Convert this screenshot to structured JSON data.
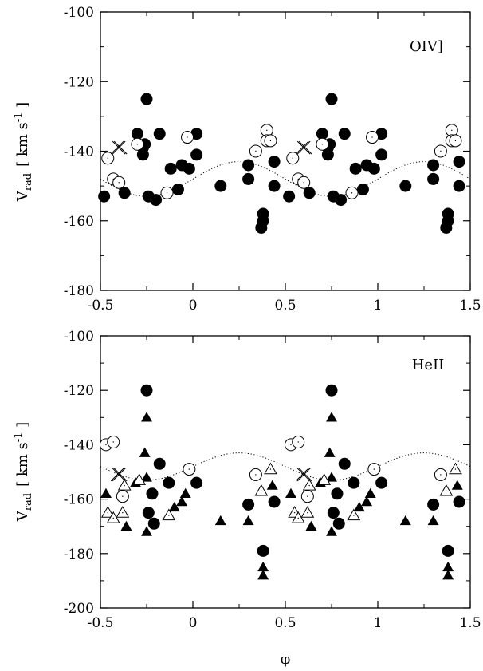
{
  "chart_data": [
    {
      "type": "scatter",
      "annotation": "OIV]",
      "xlabel": "φ",
      "xlim": [
        -0.5,
        1.5
      ],
      "ylim": [
        -180,
        -100
      ],
      "xticks": [
        "-0.5",
        "0",
        "0.5",
        "1",
        "1.5"
      ],
      "yticks": [
        "-100",
        "-120",
        "-140",
        "-160",
        "-180"
      ],
      "ylabel": {
        "main": "V",
        "sub": "rad",
        "unit_open": "[ km s",
        "unit_exp": "-1",
        "unit_close": " ]"
      },
      "model_curve": {
        "style": "dotted",
        "mean": -148,
        "amplitude": 5,
        "phase_of_max": 0.25
      },
      "series": [
        {
          "marker": "filled-circle",
          "points": [
            [
              -0.48,
              -153
            ],
            [
              -0.37,
              -152
            ],
            [
              -0.3,
              -135
            ],
            [
              -0.27,
              -141
            ],
            [
              -0.26,
              -138
            ],
            [
              -0.27,
              -139
            ],
            [
              -0.25,
              -125
            ],
            [
              -0.24,
              -153
            ],
            [
              -0.2,
              -154
            ],
            [
              -0.18,
              -135
            ],
            [
              -0.12,
              -145
            ],
            [
              -0.08,
              -151
            ],
            [
              -0.06,
              -144
            ],
            [
              -0.02,
              -145
            ],
            [
              0.02,
              -135
            ],
            [
              0.02,
              -141
            ],
            [
              0.15,
              -150
            ],
            [
              0.3,
              -144
            ],
            [
              0.3,
              -148
            ],
            [
              0.37,
              -162
            ],
            [
              0.38,
              -158
            ],
            [
              0.38,
              -160
            ],
            [
              0.44,
              -143
            ],
            [
              0.44,
              -150
            ],
            [
              0.52,
              -153
            ],
            [
              0.63,
              -152
            ],
            [
              0.7,
              -135
            ],
            [
              0.73,
              -141
            ],
            [
              0.74,
              -138
            ],
            [
              0.73,
              -139
            ],
            [
              0.75,
              -125
            ],
            [
              0.76,
              -153
            ],
            [
              0.8,
              -154
            ],
            [
              0.82,
              -135
            ],
            [
              0.88,
              -145
            ],
            [
              0.92,
              -151
            ],
            [
              0.94,
              -144
            ],
            [
              0.98,
              -145
            ],
            [
              1.02,
              -135
            ],
            [
              1.02,
              -141
            ],
            [
              1.15,
              -150
            ],
            [
              1.3,
              -144
            ],
            [
              1.3,
              -148
            ],
            [
              1.37,
              -162
            ],
            [
              1.38,
              -158
            ],
            [
              1.38,
              -160
            ],
            [
              1.44,
              -143
            ],
            [
              1.44,
              -150
            ]
          ]
        },
        {
          "marker": "open-circle",
          "points": [
            [
              -0.46,
              -142
            ],
            [
              -0.43,
              -148
            ],
            [
              -0.4,
              -149
            ],
            [
              -0.3,
              -138
            ],
            [
              -0.14,
              -152
            ],
            [
              -0.03,
              -136
            ],
            [
              0.34,
              -140
            ],
            [
              0.4,
              -134
            ],
            [
              0.4,
              -137
            ],
            [
              0.42,
              -137
            ],
            [
              0.54,
              -142
            ],
            [
              0.57,
              -148
            ],
            [
              0.6,
              -149
            ],
            [
              0.7,
              -138
            ],
            [
              0.86,
              -152
            ],
            [
              0.97,
              -136
            ],
            [
              1.34,
              -140
            ],
            [
              1.4,
              -134
            ],
            [
              1.4,
              -137
            ],
            [
              1.42,
              -137
            ]
          ]
        },
        {
          "marker": "cross",
          "points": [
            [
              -0.4,
              -139
            ],
            [
              0.6,
              -139
            ]
          ]
        }
      ]
    },
    {
      "type": "scatter",
      "annotation": "HeII",
      "xlabel": "φ",
      "xlim": [
        -0.5,
        1.5
      ],
      "ylim": [
        -200,
        -100
      ],
      "xticks": [
        "-0.5",
        "0",
        "0.5",
        "1",
        "1.5"
      ],
      "yticks": [
        "-100",
        "-120",
        "-140",
        "-160",
        "-180",
        "-200"
      ],
      "ylabel": {
        "main": "V",
        "sub": "rad",
        "unit_open": "[ km s",
        "unit_exp": "-1",
        "unit_close": " ]"
      },
      "model_curve": {
        "style": "dotted",
        "mean": -148,
        "amplitude": 5,
        "phase_of_max": 0.25
      },
      "series": [
        {
          "marker": "filled-circle",
          "points": [
            [
              -0.25,
              -120
            ],
            [
              -0.24,
              -165
            ],
            [
              -0.22,
              -158
            ],
            [
              -0.21,
              -169
            ],
            [
              -0.18,
              -147
            ],
            [
              -0.13,
              -154
            ],
            [
              0.02,
              -154
            ],
            [
              0.3,
              -162
            ],
            [
              0.38,
              -179
            ],
            [
              0.44,
              -161
            ],
            [
              0.75,
              -120
            ],
            [
              0.76,
              -165
            ],
            [
              0.78,
              -158
            ],
            [
              0.79,
              -169
            ],
            [
              0.82,
              -147
            ],
            [
              0.87,
              -154
            ],
            [
              1.02,
              -154
            ],
            [
              1.3,
              -162
            ],
            [
              1.38,
              -179
            ],
            [
              1.44,
              -161
            ]
          ]
        },
        {
          "marker": "filled-triangle",
          "points": [
            [
              -0.47,
              -158
            ],
            [
              -0.36,
              -170
            ],
            [
              -0.31,
              -154
            ],
            [
              -0.26,
              -143
            ],
            [
              -0.25,
              -130
            ],
            [
              -0.25,
              -152
            ],
            [
              -0.25,
              -172
            ],
            [
              -0.1,
              -163
            ],
            [
              -0.06,
              -161
            ],
            [
              -0.04,
              -158
            ],
            [
              0.15,
              -168
            ],
            [
              0.3,
              -168
            ],
            [
              0.38,
              -188
            ],
            [
              0.38,
              -185
            ],
            [
              0.43,
              -155
            ],
            [
              0.53,
              -158
            ],
            [
              0.64,
              -170
            ],
            [
              0.69,
              -154
            ],
            [
              0.74,
              -143
            ],
            [
              0.75,
              -130
            ],
            [
              0.75,
              -152
            ],
            [
              0.75,
              -172
            ],
            [
              0.9,
              -163
            ],
            [
              0.94,
              -161
            ],
            [
              0.96,
              -158
            ],
            [
              1.15,
              -168
            ],
            [
              1.3,
              -168
            ],
            [
              1.38,
              -188
            ],
            [
              1.38,
              -185
            ],
            [
              1.43,
              -155
            ]
          ]
        },
        {
          "marker": "open-circle",
          "points": [
            [
              -0.47,
              -140
            ],
            [
              -0.43,
              -139
            ],
            [
              -0.38,
              -159
            ],
            [
              -0.02,
              -149
            ],
            [
              0.34,
              -151
            ],
            [
              0.53,
              -140
            ],
            [
              0.57,
              -139
            ],
            [
              0.62,
              -159
            ],
            [
              0.98,
              -149
            ],
            [
              1.34,
              -151
            ]
          ]
        },
        {
          "marker": "open-triangle",
          "points": [
            [
              -0.46,
              -165
            ],
            [
              -0.43,
              -167
            ],
            [
              -0.38,
              -165
            ],
            [
              -0.37,
              -155
            ],
            [
              -0.29,
              -153
            ],
            [
              -0.13,
              -166
            ],
            [
              0.37,
              -157
            ],
            [
              0.42,
              -149
            ],
            [
              0.55,
              -165
            ],
            [
              0.57,
              -167
            ],
            [
              0.62,
              -165
            ],
            [
              0.63,
              -155
            ],
            [
              0.71,
              -153
            ],
            [
              0.87,
              -166
            ],
            [
              1.37,
              -157
            ],
            [
              1.42,
              -149
            ]
          ]
        },
        {
          "marker": "cross",
          "points": [
            [
              -0.4,
              -151
            ],
            [
              0.6,
              -151
            ]
          ]
        }
      ]
    }
  ]
}
